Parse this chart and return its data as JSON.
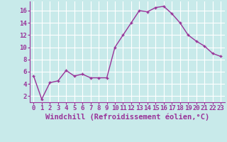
{
  "x": [
    0,
    1,
    2,
    3,
    4,
    5,
    6,
    7,
    8,
    9,
    10,
    11,
    12,
    13,
    14,
    15,
    16,
    17,
    18,
    19,
    20,
    21,
    22,
    23
  ],
  "y": [
    5.3,
    1.5,
    4.2,
    4.5,
    6.2,
    5.3,
    5.6,
    5.0,
    5.0,
    5.0,
    10.0,
    12.0,
    14.0,
    16.0,
    15.8,
    16.5,
    16.7,
    15.5,
    14.0,
    12.0,
    11.0,
    10.2,
    9.0,
    8.5
  ],
  "xlabel": "Windchill (Refroidissement éolien,°C)",
  "line_color": "#993399",
  "marker": "+",
  "background_color": "#c8eaea",
  "grid_color": "#ffffff",
  "ylim": [
    1,
    17.5
  ],
  "yticks": [
    2,
    4,
    6,
    8,
    10,
    12,
    14,
    16
  ],
  "xticks": [
    0,
    1,
    2,
    3,
    4,
    5,
    6,
    7,
    8,
    9,
    10,
    11,
    12,
    13,
    14,
    15,
    16,
    17,
    18,
    19,
    20,
    21,
    22,
    23
  ],
  "tick_fontsize": 6.5,
  "xlabel_fontsize": 7.5
}
